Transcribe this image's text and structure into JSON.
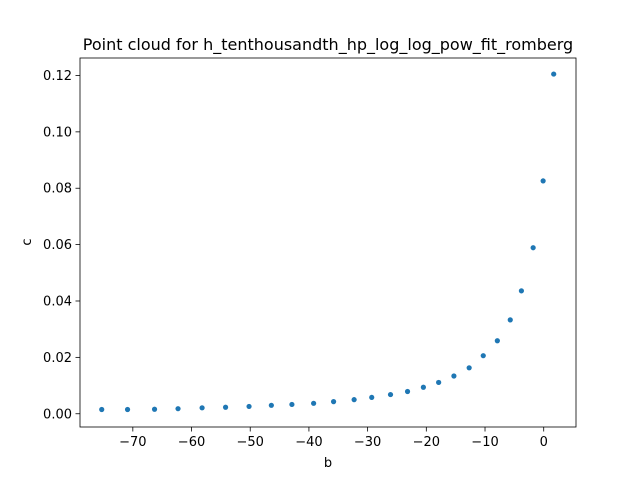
{
  "chart_data": {
    "type": "scatter",
    "title": "Point cloud for h_tenthousandth_hp_log_log_pow_fit_romberg",
    "xlabel": "b",
    "ylabel": "c",
    "xlim": [
      -79,
      5.5
    ],
    "ylim": [
      -0.0047,
      0.1262
    ],
    "x_ticks": [
      -70,
      -60,
      -50,
      -40,
      -30,
      -20,
      -10,
      0
    ],
    "x_tick_labels": [
      "−70",
      "−60",
      "−50",
      "−40",
      "−30",
      "−20",
      "−10",
      "0"
    ],
    "y_ticks": [
      0.0,
      0.02,
      0.04,
      0.06,
      0.08,
      0.1,
      0.12
    ],
    "y_tick_labels": [
      "0.00",
      "0.02",
      "0.04",
      "0.06",
      "0.08",
      "0.10",
      "0.12"
    ],
    "grid": false,
    "point_color": "#1f77b4",
    "series": [
      {
        "x": [
          -75.3,
          -70.9,
          -66.3,
          -62.3,
          -58.2,
          -54.2,
          -50.2,
          -46.4,
          -42.9,
          -39.2,
          -35.8,
          -32.3,
          -29.3,
          -26.1,
          -23.2,
          -20.5,
          -17.9,
          -15.3,
          -12.7,
          -10.3,
          -7.9,
          -5.7,
          -3.8,
          -1.8,
          -0.1,
          1.7
        ],
        "y": [
          0.0015,
          0.0015,
          0.0016,
          0.0018,
          0.0021,
          0.0023,
          0.0026,
          0.003,
          0.0033,
          0.0037,
          0.0043,
          0.005,
          0.0058,
          0.0068,
          0.0079,
          0.0094,
          0.0111,
          0.0134,
          0.0163,
          0.0206,
          0.0259,
          0.0333,
          0.0436,
          0.0589,
          0.0826,
          0.1205
        ]
      }
    ]
  }
}
